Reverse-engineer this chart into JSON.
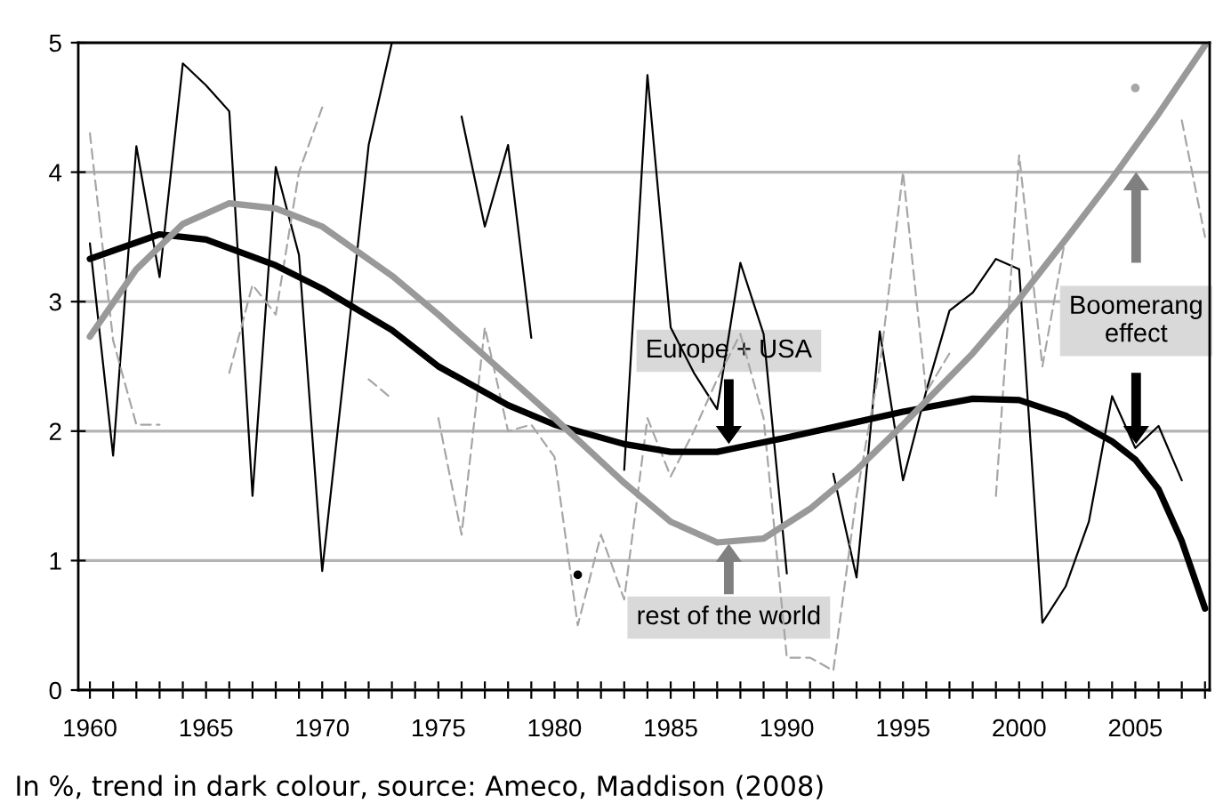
{
  "chart_data": {
    "type": "line",
    "x": [
      1960,
      1961,
      1962,
      1963,
      1964,
      1965,
      1966,
      1967,
      1968,
      1969,
      1970,
      1971,
      1972,
      1973,
      1974,
      1975,
      1976,
      1977,
      1978,
      1979,
      1980,
      1981,
      1982,
      1983,
      1984,
      1985,
      1986,
      1987,
      1988,
      1989,
      1990,
      1991,
      1992,
      1993,
      1994,
      1995,
      1996,
      1997,
      1998,
      1999,
      2000,
      2001,
      2002,
      2003,
      2004,
      2005,
      2006,
      2007,
      2008
    ],
    "series": [
      {
        "color": "#000000",
        "line_style": "solid",
        "values": [
          3.45,
          1.81,
          4.2,
          3.19,
          4.84,
          4.67,
          4.47,
          1.5,
          4.04,
          3.36,
          0.92,
          2.55,
          4.21,
          5.0,
          null,
          null,
          4.43,
          3.58,
          4.21,
          2.72,
          null,
          0.89,
          null,
          1.7,
          4.75,
          2.8,
          2.45,
          2.17,
          3.3,
          2.75,
          0.9,
          null,
          1.67,
          0.87,
          2.77,
          1.62,
          2.31,
          2.93,
          3.07,
          3.33,
          3.25,
          0.52,
          0.8,
          1.3,
          2.27,
          1.87,
          2.04,
          1.62,
          null
        ]
      },
      {
        "color": "#a6a6a6",
        "line_style": "dashed",
        "values": [
          4.3,
          2.7,
          2.05,
          2.05,
          null,
          null,
          2.45,
          3.13,
          2.9,
          4.0,
          4.5,
          null,
          2.4,
          2.25,
          null,
          2.1,
          1.2,
          2.8,
          2.0,
          2.05,
          1.8,
          0.5,
          1.2,
          0.7,
          2.1,
          1.65,
          2.0,
          2.4,
          2.75,
          2.1,
          0.25,
          0.25,
          0.15,
          1.5,
          2.5,
          4.0,
          2.3,
          2.6,
          null,
          1.5,
          4.13,
          2.5,
          3.5,
          null,
          null,
          4.65,
          null,
          4.4,
          3.5
        ]
      },
      {
        "color": "#000000",
        "line_style": "solid",
        "x": [
          1960,
          1963,
          1965,
          1968,
          1970,
          1973,
          1975,
          1978,
          1980,
          1983,
          1985,
          1987,
          1990,
          1993,
          1995,
          1998,
          2000,
          2002,
          2004,
          2005,
          2006,
          2007,
          2008
        ],
        "values": [
          3.33,
          3.52,
          3.48,
          3.28,
          3.1,
          2.78,
          2.5,
          2.2,
          2.05,
          1.9,
          1.84,
          1.84,
          1.95,
          2.07,
          2.15,
          2.25,
          2.24,
          2.12,
          1.92,
          1.78,
          1.55,
          1.15,
          0.63
        ]
      },
      {
        "color": "#999999",
        "line_style": "solid",
        "x": [
          1960,
          1962,
          1964,
          1966,
          1968,
          1970,
          1973,
          1975,
          1978,
          1980,
          1983,
          1985,
          1987,
          1989,
          1991,
          1993,
          1995,
          1998,
          2000,
          2002,
          2004,
          2006,
          2008
        ],
        "values": [
          2.73,
          3.25,
          3.6,
          3.76,
          3.72,
          3.58,
          3.2,
          2.9,
          2.42,
          2.1,
          1.6,
          1.3,
          1.14,
          1.17,
          1.4,
          1.7,
          2.05,
          2.6,
          3.02,
          3.48,
          3.95,
          4.45,
          4.98
        ]
      }
    ],
    "xlim": [
      1959.5,
      2008.2
    ],
    "xticks": [
      1960,
      {
        "value": 1961,
        "label": null
      },
      {
        "value": 1962,
        "label": null
      },
      {
        "value": 1963,
        "label": null
      },
      {
        "value": 1964,
        "label": null
      },
      1965,
      {
        "value": 1966,
        "label": null
      },
      {
        "value": 1967,
        "label": null
      },
      {
        "value": 1968,
        "label": null
      },
      {
        "value": 1969,
        "label": null
      },
      1970,
      {
        "value": 1971,
        "label": null
      },
      {
        "value": 1972,
        "label": null
      },
      {
        "value": 1973,
        "label": null
      },
      {
        "value": 1974,
        "label": null
      },
      1975,
      {
        "value": 1976,
        "label": null
      },
      {
        "value": 1977,
        "label": null
      },
      {
        "value": 1978,
        "label": null
      },
      {
        "value": 1979,
        "label": null
      },
      1980,
      {
        "value": 1981,
        "label": null
      },
      {
        "value": 1982,
        "label": null
      },
      {
        "value": 1983,
        "label": null
      },
      {
        "value": 1984,
        "label": null
      },
      1985,
      {
        "value": 1986,
        "label": null
      },
      {
        "value": 1987,
        "label": null
      },
      {
        "value": 1988,
        "label": null
      },
      {
        "value": 1989,
        "label": null
      },
      1990,
      {
        "value": 1991,
        "label": null
      },
      {
        "value": 1992,
        "label": null
      },
      {
        "value": 1993,
        "label": null
      },
      {
        "value": 1994,
        "label": null
      },
      1995,
      {
        "value": 1996,
        "label": null
      },
      {
        "value": 1997,
        "label": null
      },
      {
        "value": 1998,
        "label": null
      },
      {
        "value": 1999,
        "label": null
      },
      2000,
      {
        "value": 2001,
        "label": null
      },
      {
        "value": 2002,
        "label": null
      },
      {
        "value": 2003,
        "label": null
      },
      {
        "value": 2004,
        "label": null
      },
      2005,
      {
        "value": 2006,
        "label": null
      },
      {
        "value": 2007,
        "label": null
      },
      {
        "value": 2008,
        "label": null
      }
    ],
    "ylim": [
      0,
      5
    ],
    "yticks": [
      0,
      1,
      2,
      3,
      4,
      5
    ],
    "grid": "y",
    "legend": false,
    "marker": "none",
    "annotations": [
      "Europe + USA",
      "rest of the world",
      "Boomerang\neffect",
      "In %, trend in dark colour, source: Ameco, Maddison (2008)"
    ]
  }
}
